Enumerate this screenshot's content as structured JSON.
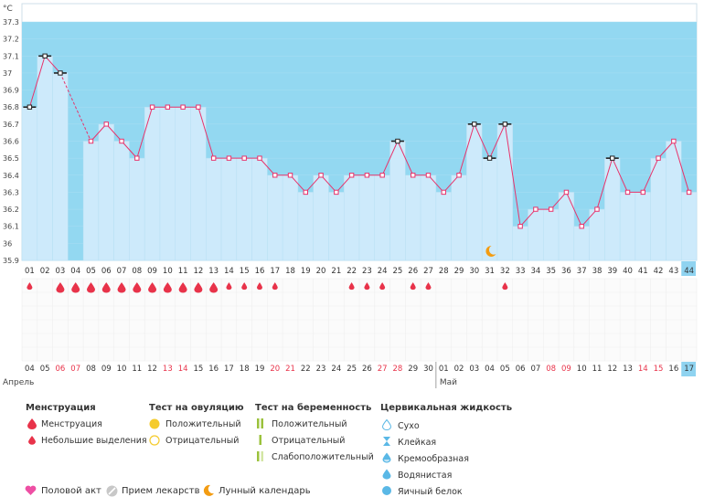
{
  "chart_data": {
    "type": "line",
    "unit": "°C",
    "ylim": [
      35.9,
      37.3
    ],
    "yticks": [
      "37.3",
      "37.2",
      "37.1",
      "37",
      "36.9",
      "36.8",
      "36.7",
      "36.6",
      "36.5",
      "36.4",
      "36.3",
      "36.2",
      "36.1",
      "36",
      "35.9"
    ],
    "days": [
      "01",
      "02",
      "03",
      "04",
      "05",
      "06",
      "07",
      "08",
      "09",
      "10",
      "11",
      "12",
      "13",
      "14",
      "15",
      "16",
      "17",
      "18",
      "19",
      "20",
      "21",
      "22",
      "23",
      "24",
      "25",
      "26",
      "27",
      "28",
      "29",
      "30",
      "31",
      "32",
      "33",
      "34",
      "35",
      "36",
      "37",
      "38",
      "39",
      "40",
      "41",
      "42",
      "43",
      "44"
    ],
    "temperatures": [
      36.8,
      37.1,
      37.0,
      null,
      36.6,
      36.7,
      36.6,
      36.5,
      36.8,
      36.8,
      36.8,
      36.8,
      36.5,
      36.5,
      36.5,
      36.5,
      36.4,
      36.4,
      36.3,
      36.4,
      36.3,
      36.4,
      36.4,
      36.4,
      36.6,
      36.4,
      36.4,
      36.3,
      36.4,
      36.7,
      36.5,
      36.7,
      36.1,
      36.2,
      36.2,
      36.3,
      36.1,
      36.2,
      36.5,
      36.3,
      36.3,
      36.5,
      36.6,
      36.3
    ],
    "marked_days": [
      "01",
      "02",
      "03",
      "25",
      "30",
      "31",
      "32",
      "39"
    ],
    "current_day": "44",
    "menstruation": {
      "heavy": [
        "03",
        "04",
        "05",
        "06",
        "07",
        "08",
        "09",
        "10",
        "11",
        "12",
        "13"
      ],
      "light": [
        "01",
        "14",
        "15",
        "16",
        "17",
        "22",
        "23",
        "24",
        "26",
        "27",
        "32"
      ]
    },
    "moon_day": "31",
    "dates": [
      "04",
      "05",
      "06",
      "07",
      "08",
      "09",
      "10",
      "11",
      "12",
      "13",
      "14",
      "15",
      "16",
      "17",
      "18",
      "19",
      "20",
      "21",
      "22",
      "23",
      "24",
      "25",
      "26",
      "27",
      "28",
      "29",
      "30",
      "01",
      "02",
      "03",
      "04",
      "05",
      "06",
      "07",
      "08",
      "09",
      "10",
      "11",
      "12",
      "13",
      "14",
      "15",
      "16",
      "17"
    ],
    "red_dates_idx": [
      2,
      3,
      9,
      10,
      16,
      17,
      23,
      24,
      34,
      35,
      40,
      41
    ],
    "months": [
      {
        "label": "Апрель",
        "start_idx": 0
      },
      {
        "label": "Май",
        "start_idx": 27
      }
    ],
    "colors": {
      "menstruation": "#e8334a",
      "line": "#e8336b",
      "bar": "#cdeafb",
      "band": "#93d8f1",
      "current": "#8fd3f0"
    }
  },
  "legend": {
    "menstruation": {
      "title": "Менструация",
      "items": [
        "Менструация",
        "Небольшие выделения"
      ]
    },
    "ovulation": {
      "title": "Тест на овуляцию",
      "items": [
        "Положительный",
        "Отрицательный"
      ]
    },
    "pregnancy": {
      "title": "Тест на беременность",
      "items": [
        "Положительный",
        "Отрицательный",
        "Слабоположительный"
      ]
    },
    "cervical": {
      "title": "Цервикальная жидкость",
      "items": [
        "Сухо",
        "Клейкая",
        "Кремообразная",
        "Водянистая",
        "Яичный белок"
      ]
    },
    "bottom": [
      "Половой акт",
      "Прием лекарств",
      "Лунный календарь"
    ]
  }
}
